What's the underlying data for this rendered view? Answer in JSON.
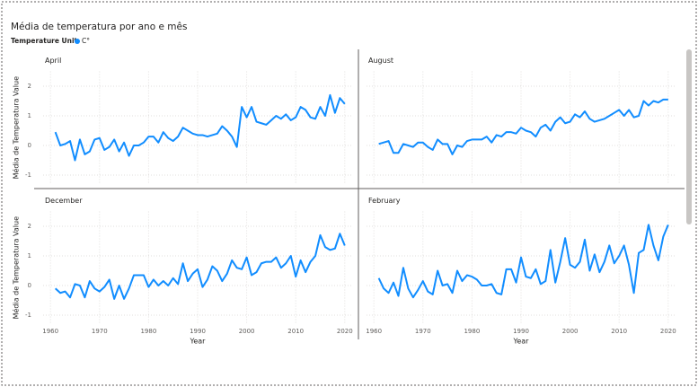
{
  "header": {
    "title": "Média de temperatura por ano e mês",
    "legend_title": "Temperature Unit"
  },
  "chart_data": [
    {
      "type": "line",
      "title": "April",
      "y_label": "Média de Temperatura Value",
      "x": [
        1961,
        1962,
        1963,
        1964,
        1965,
        1966,
        1967,
        1968,
        1969,
        1970,
        1971,
        1972,
        1973,
        1974,
        1975,
        1976,
        1977,
        1978,
        1979,
        1980,
        1981,
        1982,
        1983,
        1984,
        1985,
        1986,
        1987,
        1988,
        1989,
        1990,
        1991,
        1992,
        1993,
        1994,
        1995,
        1996,
        1997,
        1998,
        1999,
        2000,
        2001,
        2002,
        2003,
        2004,
        2005,
        2006,
        2007,
        2008,
        2009,
        2010,
        2011,
        2012,
        2013,
        2014,
        2015,
        2016,
        2017,
        2018,
        2019,
        2020
      ],
      "series": [
        {
          "name": "C°",
          "color": "#118dff",
          "values": [
            0.45,
            0.0,
            0.05,
            0.15,
            -0.5,
            0.2,
            -0.3,
            -0.2,
            0.2,
            0.25,
            -0.15,
            -0.05,
            0.2,
            -0.2,
            0.1,
            -0.35,
            0.0,
            0.0,
            0.1,
            0.3,
            0.3,
            0.1,
            0.45,
            0.25,
            0.15,
            0.3,
            0.6,
            0.5,
            0.4,
            0.35,
            0.35,
            0.3,
            0.35,
            0.4,
            0.65,
            0.5,
            0.3,
            -0.05,
            1.3,
            0.95,
            1.3,
            0.8,
            0.75,
            0.7,
            0.85,
            1.0,
            0.9,
            1.05,
            0.85,
            0.95,
            1.3,
            1.2,
            0.95,
            0.9,
            1.3,
            1.0,
            1.7,
            1.1,
            1.6,
            1.4
          ]
        }
      ],
      "xlim": [
        1958.5,
        2021.5
      ],
      "xticks": [
        1960,
        1970,
        1980,
        1990,
        2000,
        2010,
        2020
      ],
      "ylim": [
        -1.3,
        2.5
      ],
      "yticks": [
        -1,
        0,
        1,
        2
      ],
      "grid": true
    },
    {
      "type": "line",
      "title": "August",
      "x": [
        1961,
        1962,
        1963,
        1964,
        1965,
        1966,
        1967,
        1968,
        1969,
        1970,
        1971,
        1972,
        1973,
        1974,
        1975,
        1976,
        1977,
        1978,
        1979,
        1980,
        1981,
        1982,
        1983,
        1984,
        1985,
        1986,
        1987,
        1988,
        1989,
        1990,
        1991,
        1992,
        1993,
        1994,
        1995,
        1996,
        1997,
        1998,
        1999,
        2000,
        2001,
        2002,
        2003,
        2004,
        2005,
        2006,
        2007,
        2008,
        2009,
        2010,
        2011,
        2012,
        2013,
        2014,
        2015,
        2016,
        2017,
        2018,
        2019,
        2020
      ],
      "series": [
        {
          "name": "C°",
          "color": "#118dff",
          "values": [
            0.05,
            0.1,
            0.15,
            -0.25,
            -0.25,
            0.05,
            0.0,
            -0.05,
            0.1,
            0.1,
            -0.05,
            -0.15,
            0.2,
            0.05,
            0.05,
            -0.3,
            0.0,
            -0.05,
            0.15,
            0.2,
            0.2,
            0.2,
            0.3,
            0.1,
            0.35,
            0.3,
            0.45,
            0.45,
            0.4,
            0.6,
            0.5,
            0.45,
            0.3,
            0.6,
            0.7,
            0.5,
            0.8,
            0.95,
            0.75,
            0.8,
            1.05,
            0.95,
            1.15,
            0.9,
            0.8,
            0.85,
            0.9,
            1.0,
            1.1,
            1.2,
            1.0,
            1.2,
            0.95,
            1.0,
            1.5,
            1.35,
            1.5,
            1.45,
            1.55,
            1.55
          ]
        }
      ],
      "xlim": [
        1958.5,
        2021.5
      ],
      "xticks": [
        1960,
        1970,
        1980,
        1990,
        2000,
        2010,
        2020
      ],
      "ylim": [
        -1.3,
        2.5
      ],
      "yticks": [
        -1,
        0,
        1,
        2
      ],
      "grid": true
    },
    {
      "type": "line",
      "title": "December",
      "y_label": "Média de Temperatura Value",
      "x_label": "Year",
      "x": [
        1961,
        1962,
        1963,
        1964,
        1965,
        1966,
        1967,
        1968,
        1969,
        1970,
        1971,
        1972,
        1973,
        1974,
        1975,
        1976,
        1977,
        1978,
        1979,
        1980,
        1981,
        1982,
        1983,
        1984,
        1985,
        1986,
        1987,
        1988,
        1989,
        1990,
        1991,
        1992,
        1993,
        1994,
        1995,
        1996,
        1997,
        1998,
        1999,
        2000,
        2001,
        2002,
        2003,
        2004,
        2005,
        2006,
        2007,
        2008,
        2009,
        2010,
        2011,
        2012,
        2013,
        2014,
        2015,
        2016,
        2017,
        2018,
        2019,
        2020
      ],
      "series": [
        {
          "name": "C°",
          "color": "#118dff",
          "values": [
            -0.1,
            -0.25,
            -0.2,
            -0.4,
            0.05,
            0.0,
            -0.4,
            0.15,
            -0.1,
            -0.2,
            -0.05,
            0.2,
            -0.45,
            0.0,
            -0.45,
            -0.1,
            0.35,
            0.35,
            0.35,
            -0.05,
            0.2,
            0.0,
            0.15,
            0.0,
            0.25,
            0.05,
            0.75,
            0.15,
            0.4,
            0.55,
            -0.05,
            0.2,
            0.65,
            0.5,
            0.15,
            0.4,
            0.85,
            0.6,
            0.55,
            0.95,
            0.35,
            0.45,
            0.75,
            0.8,
            0.8,
            0.95,
            0.6,
            0.75,
            1.0,
            0.3,
            0.85,
            0.45,
            0.8,
            1.0,
            1.7,
            1.3,
            1.2,
            1.25,
            1.75,
            1.35
          ]
        }
      ],
      "xlim": [
        1958.5,
        2021.5
      ],
      "xticks": [
        1960,
        1970,
        1980,
        1990,
        2000,
        2010,
        2020
      ],
      "ylim": [
        -1.3,
        2.5
      ],
      "yticks": [
        -1,
        0,
        1,
        2
      ],
      "grid": true
    },
    {
      "type": "line",
      "title": "February",
      "x_label": "Year",
      "x": [
        1961,
        1962,
        1963,
        1964,
        1965,
        1966,
        1967,
        1968,
        1969,
        1970,
        1971,
        1972,
        1973,
        1974,
        1975,
        1976,
        1977,
        1978,
        1979,
        1980,
        1981,
        1982,
        1983,
        1984,
        1985,
        1986,
        1987,
        1988,
        1989,
        1990,
        1991,
        1992,
        1993,
        1994,
        1995,
        1996,
        1997,
        1998,
        1999,
        2000,
        2001,
        2002,
        2003,
        2004,
        2005,
        2006,
        2007,
        2008,
        2009,
        2010,
        2011,
        2012,
        2013,
        2014,
        2015,
        2016,
        2017,
        2018,
        2019,
        2020
      ],
      "series": [
        {
          "name": "C°",
          "color": "#118dff",
          "values": [
            0.25,
            -0.1,
            -0.25,
            0.1,
            -0.35,
            0.6,
            -0.1,
            -0.4,
            -0.15,
            0.15,
            -0.2,
            -0.3,
            0.5,
            0.0,
            0.05,
            -0.25,
            0.5,
            0.15,
            0.35,
            0.3,
            0.2,
            0.0,
            0.0,
            0.05,
            -0.25,
            -0.3,
            0.55,
            0.55,
            0.1,
            0.95,
            0.3,
            0.25,
            0.55,
            0.05,
            0.15,
            1.2,
            0.1,
            0.8,
            1.6,
            0.7,
            0.6,
            0.8,
            1.55,
            0.5,
            1.05,
            0.45,
            0.8,
            1.35,
            0.75,
            1.0,
            1.35,
            0.7,
            -0.25,
            1.1,
            1.2,
            2.05,
            1.35,
            0.85,
            1.65,
            2.05
          ]
        }
      ],
      "xlim": [
        1958.5,
        2021.5
      ],
      "xticks": [
        1960,
        1970,
        1980,
        1990,
        2000,
        2010,
        2020
      ],
      "ylim": [
        -1.3,
        2.5
      ],
      "yticks": [
        -1,
        0,
        1,
        2
      ],
      "grid": true
    }
  ]
}
